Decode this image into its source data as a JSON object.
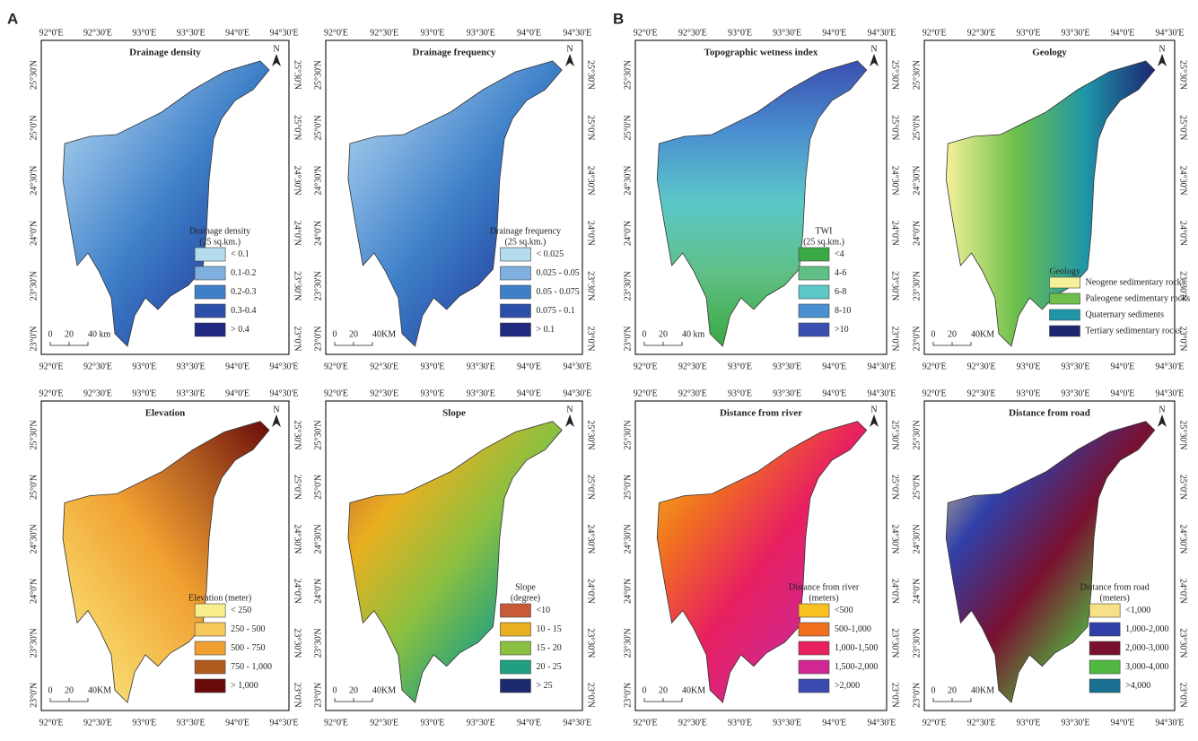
{
  "panel_labels": [
    "A",
    "B"
  ],
  "axes": {
    "lon": [
      "92°0'E",
      "92°30'E",
      "93°0'E",
      "93°30'E",
      "94°0'E",
      "94°30'E"
    ],
    "lat": [
      "25°30'N",
      "25°0'N",
      "24°30'N",
      "24°0'N",
      "23°30'N",
      "23°0'N"
    ]
  },
  "north": "N",
  "panels": [
    {
      "title": "Drainage density",
      "legend_title": [
        "Drainage density",
        "(25 sq.km.)"
      ],
      "legend": [
        {
          "label": "< 0.1",
          "color": "#b4dcec"
        },
        {
          "label": "0.1-0.2",
          "color": "#7fb0e0"
        },
        {
          "label": "0.2-0.3",
          "color": "#3d7fc8"
        },
        {
          "label": "0.3-0.4",
          "color": "#2b4fa8"
        },
        {
          "label": "> 0.4",
          "color": "#1f2a80"
        }
      ],
      "scale": [
        "0",
        "20",
        "40 km"
      ]
    },
    {
      "title": "Drainage frequency",
      "legend_title": [
        "Drainage frequency",
        "(25 sq.km.)"
      ],
      "legend": [
        {
          "label": "< 0.025",
          "color": "#b4dcec"
        },
        {
          "label": "0.025 - 0.05",
          "color": "#7fb0e0"
        },
        {
          "label": "0.05 - 0.075",
          "color": "#3d7fc8"
        },
        {
          "label": "0.075 - 0.1",
          "color": "#2b4fa8"
        },
        {
          "label": "> 0.1",
          "color": "#1f2a80"
        }
      ],
      "scale": [
        "0",
        "20",
        "40KM"
      ]
    },
    {
      "title": "Topographic wetness index",
      "legend_title": [
        "TWI",
        "(25 sq.km.)"
      ],
      "legend": [
        {
          "label": "<4",
          "color": "#3aa843"
        },
        {
          "label": "4-6",
          "color": "#5fbf84"
        },
        {
          "label": "6-8",
          "color": "#5cc8c8"
        },
        {
          "label": "8-10",
          "color": "#4a8fd0"
        },
        {
          "label": ">10",
          "color": "#3a4fb0"
        }
      ],
      "scale": [
        "0",
        "20",
        "40 km"
      ]
    },
    {
      "title": "Geology",
      "legend_title": [
        "Geology"
      ],
      "legend": [
        {
          "label": "Neogene sedimentary rocks",
          "color": "#f5f19a"
        },
        {
          "label": "Paleogene sedimentary rocks",
          "color": "#6dbf4a"
        },
        {
          "label": "Quaternary sediments",
          "color": "#1f96a8"
        },
        {
          "label": "Tertiary sedimentary rocks",
          "color": "#1c2670"
        }
      ],
      "scale": [
        "0",
        "20",
        "40KM"
      ]
    },
    {
      "title": "Elevation",
      "legend_title": [
        "Elevation (meter)"
      ],
      "legend": [
        {
          "label": "< 250",
          "color": "#f8ee8c"
        },
        {
          "label": "250 - 500",
          "color": "#f6c95a"
        },
        {
          "label": "500 - 750",
          "color": "#f0a030"
        },
        {
          "label": "750 - 1,000",
          "color": "#b05a20"
        },
        {
          "label": "> 1,000",
          "color": "#6a0a0a"
        }
      ],
      "scale": [
        "0",
        "20",
        "40KM"
      ]
    },
    {
      "title": "Slope",
      "legend_title": [
        "Slope",
        "(degree)"
      ],
      "legend": [
        {
          "label": "<10",
          "color": "#c85a3a"
        },
        {
          "label": "10 - 15",
          "color": "#e8b020"
        },
        {
          "label": "15 - 20",
          "color": "#8cc040"
        },
        {
          "label": "20 - 25",
          "color": "#20a080"
        },
        {
          "label": "> 25",
          "color": "#1c2a70"
        }
      ],
      "scale": [
        "0",
        "20",
        "40KM"
      ]
    },
    {
      "title": "Distance from river",
      "legend_title": [
        "Distance from river",
        "(meters)"
      ],
      "legend": [
        {
          "label": "<500",
          "color": "#f8c020"
        },
        {
          "label": "500-1,000",
          "color": "#f07020"
        },
        {
          "label": "1,000-1,500",
          "color": "#e82060"
        },
        {
          "label": "1,500-2,000",
          "color": "#d02890"
        },
        {
          "label": ">2,000",
          "color": "#3a4ab0"
        }
      ],
      "scale": [
        "0",
        "20",
        "40KM"
      ]
    },
    {
      "title": "Distance from road",
      "legend_title": [
        "Distance from road",
        "(meters)"
      ],
      "legend": [
        {
          "label": "<1,000",
          "color": "#f8e088"
        },
        {
          "label": "1,000-2,000",
          "color": "#3040a8"
        },
        {
          "label": "2,000-3,000",
          "color": "#7a1030"
        },
        {
          "label": "3,000-4,000",
          "color": "#50b840"
        },
        {
          "label": ">4,000",
          "color": "#1a7090"
        }
      ],
      "scale": [
        "0",
        "20",
        "40KM"
      ]
    }
  ]
}
